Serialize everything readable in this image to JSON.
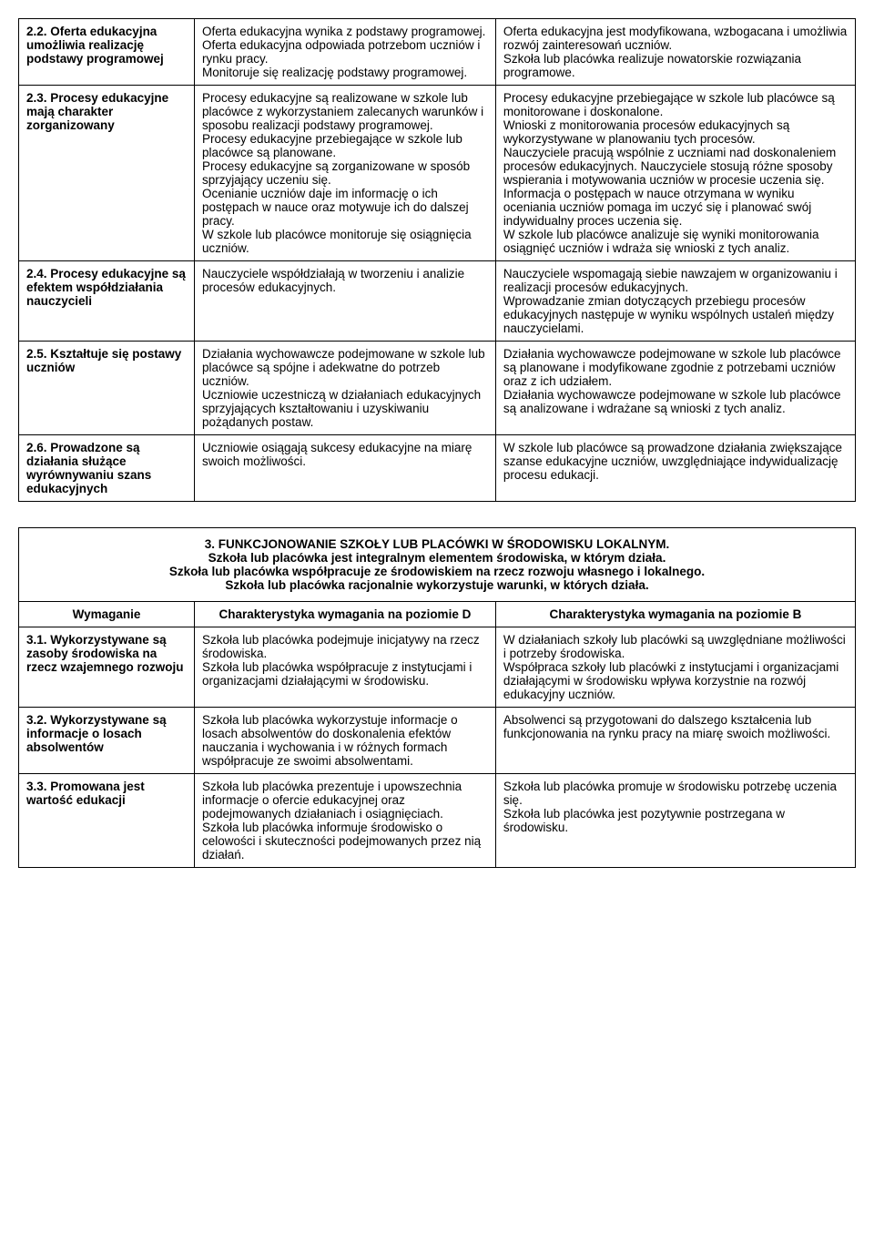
{
  "table1": {
    "rows": [
      {
        "req": "2.2. Oferta edukacyjna umożliwia realizację podstawy programowej",
        "d": "  Oferta edukacyjna wynika z podstawy programowej.\nOferta edukacyjna odpowiada potrzebom uczniów i rynku pracy.\nMonitoruje się realizację podstawy programowej.",
        "b": "  Oferta edukacyjna jest modyfikowana, wzbogacana i umożliwia rozwój zainteresowań uczniów.\nSzkoła lub placówka realizuje nowatorskie rozwiązania programowe."
      },
      {
        "req": "2.3. Procesy edukacyjne mają charakter zorganizowany",
        "d": "  Procesy edukacyjne są realizowane w szkole lub placówce z wykorzystaniem zalecanych warunków i sposobu realizacji podstawy programowej.\nProcesy edukacyjne przebiegające w szkole lub placówce są planowane.\nProcesy edukacyjne są zorganizowane w sposób sprzyjający uczeniu się.\nOcenianie uczniów daje im informację o ich postępach w nauce oraz motywuje ich do dalszej pracy.\nW szkole lub placówce monitoruje się osiągnięcia uczniów.",
        "b": "  Procesy edukacyjne przebiegające w szkole lub placówce są monitorowane i doskonalone.\nWnioski z monitorowania procesów edukacyjnych są wykorzystywane w planowaniu tych procesów.\nNauczyciele pracują wspólnie z uczniami nad doskonaleniem procesów edukacyjnych. Nauczyciele stosują różne sposoby wspierania i motywowania uczniów w procesie uczenia się.\nInformacja o postępach w nauce otrzymana w wyniku oceniania uczniów pomaga im uczyć się i planować swój indywidualny proces uczenia się.\nW szkole lub placówce analizuje się wyniki monitorowania osiągnięć uczniów i wdraża się wnioski z tych analiz."
      },
      {
        "req": "2.4. Procesy edukacyjne są efektem współdziałania nauczycieli",
        "d": "  Nauczyciele współdziałają w tworzeniu i analizie procesów edukacyjnych.",
        "b": "  Nauczyciele wspomagają siebie nawzajem w organizowaniu i realizacji procesów edukacyjnych.\nWprowadzanie zmian dotyczących przebiegu procesów edukacyjnych następuje w wyniku wspólnych ustaleń między nauczycielami."
      },
      {
        "req": "2.5. Kształtuje się postawy uczniów",
        "d": "  Działania wychowawcze podejmowane w szkole lub placówce są spójne i adekwatne do potrzeb uczniów.\nUczniowie uczestniczą w działaniach edukacyjnych sprzyjających kształtowaniu i uzyskiwaniu pożądanych postaw.",
        "b": "  Działania wychowawcze podejmowane w szkole lub placówce są planowane i modyfikowane zgodnie z potrzebami uczniów oraz z ich udziałem.\nDziałania wychowawcze podejmowane w szkole lub placówce są analizowane i wdrażane są wnioski z tych analiz."
      },
      {
        "req": "2.6. Prowadzone są działania służące wyrównywaniu szans edukacyjnych",
        "d": "  Uczniowie osiągają sukcesy edukacyjne na miarę swoich możliwości.",
        "b": "  W szkole lub placówce są prowadzone działania zwiększające szanse edukacyjne uczniów, uwzględniające indywidualizację procesu edukacji."
      }
    ]
  },
  "table2": {
    "title_lines": [
      "3. FUNKCJONOWANIE SZKOŁY LUB PLACÓWKI W ŚRODOWISKU LOKALNYM.",
      "Szkoła lub placówka jest integralnym elementem środowiska, w którym działa.",
      "Szkoła lub placówka współpracuje ze środowiskiem na rzecz rozwoju własnego i lokalnego.",
      "Szkoła lub placówka racjonalnie wykorzystuje warunki, w których działa."
    ],
    "headers": {
      "req": "Wymaganie",
      "d": "Charakterystyka wymagania na poziomie D",
      "b": "Charakterystyka wymagania na poziomie B"
    },
    "rows": [
      {
        "req": "3.1. Wykorzystywane są zasoby środowiska na rzecz wzajemnego rozwoju",
        "d": "  Szkoła lub placówka podejmuje inicjatywy na rzecz środowiska.\nSzkoła lub placówka współpracuje z instytucjami i organizacjami działającymi w środowisku.",
        "b": "  W działaniach szkoły lub placówki są uwzględniane możliwości i potrzeby środowiska.\nWspółpraca szkoły lub placówki z instytucjami i organizacjami działającymi w środowisku wpływa korzystnie na rozwój edukacyjny uczniów."
      },
      {
        "req": "3.2. Wykorzystywane są informacje o losach absolwentów",
        "d": "  Szkoła lub placówka wykorzystuje informacje o losach absolwentów do doskonalenia efektów nauczania i wychowania i w różnych formach współpracuje ze swoimi absolwentami.",
        "b": "  Absolwenci są przygotowani do dalszego kształcenia lub funkcjonowania na rynku pracy na miarę swoich możliwości."
      },
      {
        "req": "3.3. Promowana jest wartość edukacji",
        "d": "  Szkoła lub placówka prezentuje i upowszechnia informacje o ofercie edukacyjnej oraz podejmowanych działaniach i osiągnięciach.\nSzkoła lub placówka informuje środowisko o celowości i skuteczności podejmowanych przez nią działań.",
        "b": "  Szkoła lub placówka promuje w środowisku potrzebę uczenia się.\nSzkoła lub placówka jest pozytywnie postrzegana w środowisku."
      }
    ]
  }
}
